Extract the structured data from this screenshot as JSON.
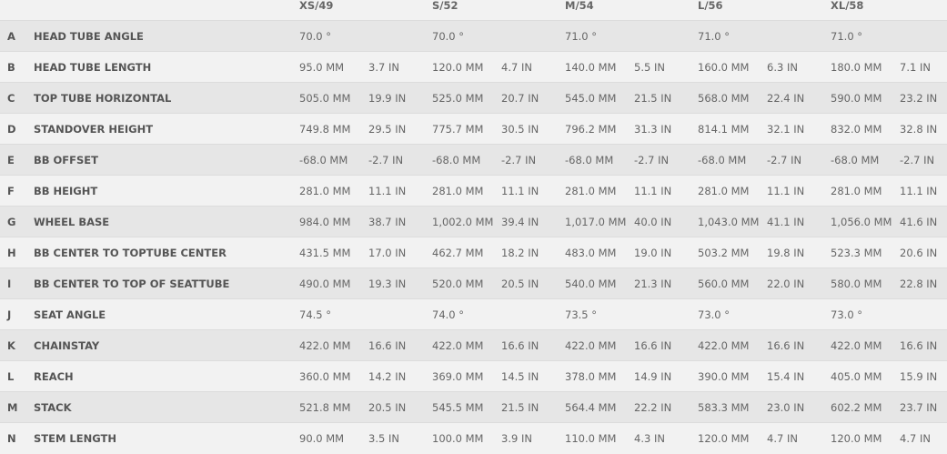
{
  "sizes": [
    "XS/49",
    "S/52",
    "M/54",
    "L/56",
    "XL/58"
  ],
  "rows": [
    {
      "letter": "A",
      "label": "HEAD TUBE ANGLE",
      "values": [
        [
          "70.0 °",
          ""
        ],
        [
          "70.0 °",
          ""
        ],
        [
          "71.0 °",
          ""
        ],
        [
          "71.0 °",
          ""
        ],
        [
          "71.0 °",
          ""
        ]
      ]
    },
    {
      "letter": "B",
      "label": "HEAD TUBE LENGTH",
      "values": [
        [
          "95.0 MM",
          "3.7 IN"
        ],
        [
          "120.0 MM",
          "4.7 IN"
        ],
        [
          "140.0 MM",
          "5.5 IN"
        ],
        [
          "160.0 MM",
          "6.3 IN"
        ],
        [
          "180.0 MM",
          "7.1 IN"
        ]
      ]
    },
    {
      "letter": "C",
      "label": "TOP TUBE HORIZONTAL",
      "values": [
        [
          "505.0 MM",
          "19.9 IN"
        ],
        [
          "525.0 MM",
          "20.7 IN"
        ],
        [
          "545.0 MM",
          "21.5 IN"
        ],
        [
          "568.0 MM",
          "22.4 IN"
        ],
        [
          "590.0 MM",
          "23.2 IN"
        ]
      ]
    },
    {
      "letter": "D",
      "label": "STANDOVER HEIGHT",
      "values": [
        [
          "749.8 MM",
          "29.5 IN"
        ],
        [
          "775.7 MM",
          "30.5 IN"
        ],
        [
          "796.2 MM",
          "31.3 IN"
        ],
        [
          "814.1 MM",
          "32.1 IN"
        ],
        [
          "832.0 MM",
          "32.8 IN"
        ]
      ]
    },
    {
      "letter": "E",
      "label": "BB OFFSET",
      "values": [
        [
          "-68.0 MM",
          "-2.7 IN"
        ],
        [
          "-68.0 MM",
          "-2.7 IN"
        ],
        [
          "-68.0 MM",
          "-2.7 IN"
        ],
        [
          "-68.0 MM",
          "-2.7 IN"
        ],
        [
          "-68.0 MM",
          "-2.7 IN"
        ]
      ]
    },
    {
      "letter": "F",
      "label": "BB HEIGHT",
      "values": [
        [
          "281.0 MM",
          "11.1 IN"
        ],
        [
          "281.0 MM",
          "11.1 IN"
        ],
        [
          "281.0 MM",
          "11.1 IN"
        ],
        [
          "281.0 MM",
          "11.1 IN"
        ],
        [
          "281.0 MM",
          "11.1 IN"
        ]
      ]
    },
    {
      "letter": "G",
      "label": "WHEEL BASE",
      "values": [
        [
          "984.0 MM",
          "38.7 IN"
        ],
        [
          "1,002.0 MM",
          "39.4 IN"
        ],
        [
          "1,017.0 MM",
          "40.0 IN"
        ],
        [
          "1,043.0 MM",
          "41.1 IN"
        ],
        [
          "1,056.0 MM",
          "41.6 IN"
        ]
      ]
    },
    {
      "letter": "H",
      "label": "BB CENTER TO TOPTUBE CENTER",
      "values": [
        [
          "431.5 MM",
          "17.0 IN"
        ],
        [
          "462.7 MM",
          "18.2 IN"
        ],
        [
          "483.0 MM",
          "19.0 IN"
        ],
        [
          "503.2 MM",
          "19.8 IN"
        ],
        [
          "523.3 MM",
          "20.6 IN"
        ]
      ]
    },
    {
      "letter": "I",
      "label": "BB CENTER TO TOP OF SEATTUBE",
      "values": [
        [
          "490.0 MM",
          "19.3 IN"
        ],
        [
          "520.0 MM",
          "20.5 IN"
        ],
        [
          "540.0 MM",
          "21.3 IN"
        ],
        [
          "560.0 MM",
          "22.0 IN"
        ],
        [
          "580.0 MM",
          "22.8 IN"
        ]
      ]
    },
    {
      "letter": "J",
      "label": "SEAT ANGLE",
      "values": [
        [
          "74.5 °",
          ""
        ],
        [
          "74.0 °",
          ""
        ],
        [
          "73.5 °",
          ""
        ],
        [
          "73.0 °",
          ""
        ],
        [
          "73.0 °",
          ""
        ]
      ]
    },
    {
      "letter": "K",
      "label": "CHAINSTAY",
      "values": [
        [
          "422.0 MM",
          "16.6 IN"
        ],
        [
          "422.0 MM",
          "16.6 IN"
        ],
        [
          "422.0 MM",
          "16.6 IN"
        ],
        [
          "422.0 MM",
          "16.6 IN"
        ],
        [
          "422.0 MM",
          "16.6 IN"
        ]
      ]
    },
    {
      "letter": "L",
      "label": "REACH",
      "values": [
        [
          "360.0 MM",
          "14.2 IN"
        ],
        [
          "369.0 MM",
          "14.5 IN"
        ],
        [
          "378.0 MM",
          "14.9 IN"
        ],
        [
          "390.0 MM",
          "15.4 IN"
        ],
        [
          "405.0 MM",
          "15.9 IN"
        ]
      ]
    },
    {
      "letter": "M",
      "label": "STACK",
      "values": [
        [
          "521.8 MM",
          "20.5 IN"
        ],
        [
          "545.5 MM",
          "21.5 IN"
        ],
        [
          "564.4 MM",
          "22.2 IN"
        ],
        [
          "583.3 MM",
          "23.0 IN"
        ],
        [
          "602.2 MM",
          "23.7 IN"
        ]
      ]
    },
    {
      "letter": "N",
      "label": "STEM LENGTH",
      "values": [
        [
          "90.0 MM",
          "3.5 IN"
        ],
        [
          "100.0 MM",
          "3.9 IN"
        ],
        [
          "110.0 MM",
          "4.3 IN"
        ],
        [
          "120.0 MM",
          "4.7 IN"
        ],
        [
          "120.0 MM",
          "4.7 IN"
        ]
      ]
    }
  ]
}
